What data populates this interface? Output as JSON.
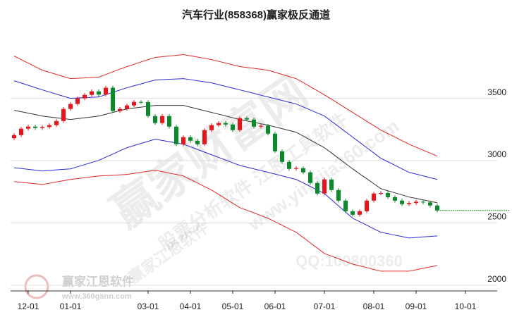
{
  "chart_data": {
    "type": "candlestick",
    "title": "汽车行业(858368)赢家极反通道",
    "categories": [
      null,
      null,
      "12-01",
      null,
      null,
      null,
      null,
      null,
      "01-01",
      null,
      null,
      null,
      null,
      null,
      null,
      null,
      null,
      null,
      null,
      "03-01",
      null,
      null,
      null,
      null,
      null,
      "04-01",
      null,
      null,
      null,
      null,
      null,
      "05-01",
      null,
      null,
      null,
      null,
      null,
      "06-01",
      null,
      null,
      null,
      null,
      null,
      null,
      "07-01",
      null,
      null,
      null,
      null,
      null,
      null,
      "08-01",
      null,
      null,
      null,
      null,
      null,
      "09-01",
      null,
      null,
      null,
      null,
      null,
      null,
      "10-01",
      null,
      null,
      null,
      null
    ],
    "open": [
      3180,
      3205,
      3256,
      3273,
      3262,
      3270,
      3285,
      3318,
      3415,
      3455,
      3500,
      3528,
      3556,
      3530,
      3585,
      3398,
      3415,
      3443,
      3471,
      3470,
      3358,
      3302,
      3358,
      3273,
      3132,
      3188,
      3160,
      3132,
      3245,
      3285,
      3302,
      3290,
      3245,
      3341,
      3330,
      3273,
      3280,
      3217,
      3075,
      2990,
      2934,
      2940,
      2906,
      2821,
      2736,
      2849,
      2764,
      2679,
      2594,
      2566,
      2594,
      2679,
      2736,
      2740,
      2707,
      2679,
      2651,
      2660,
      2670,
      2665,
      2640,
      null,
      null,
      null,
      null,
      null,
      null,
      null,
      null
    ],
    "high": [
      3220,
      3271,
      3288,
      3288,
      3285,
      3300,
      3333,
      3430,
      3470,
      3515,
      3543,
      3571,
      3571,
      3600,
      3600,
      3430,
      3458,
      3486,
      3486,
      3485,
      3373,
      3373,
      3373,
      3288,
      3203,
      3203,
      3175,
      3260,
      3300,
      3317,
      3317,
      3305,
      3356,
      3356,
      3345,
      3295,
      3295,
      3232,
      3090,
      3005,
      2955,
      2955,
      2921,
      2836,
      2864,
      2864,
      2779,
      2694,
      2609,
      2609,
      2694,
      2751,
      2755,
      2755,
      2722,
      2694,
      2675,
      2685,
      2685,
      2680,
      2655,
      null,
      null,
      null,
      null,
      null,
      null,
      null,
      null
    ],
    "low": [
      3165,
      3190,
      3241,
      3247,
      3247,
      3255,
      3270,
      3303,
      3400,
      3440,
      3485,
      3513,
      3515,
      3515,
      3383,
      3383,
      3400,
      3428,
      3455,
      3343,
      3287,
      3287,
      3258,
      3117,
      3117,
      3145,
      3117,
      3117,
      3230,
      3270,
      3275,
      3230,
      3230,
      3315,
      3258,
      3258,
      3202,
      3060,
      2975,
      2919,
      2919,
      2891,
      2806,
      2721,
      2721,
      2749,
      2664,
      2579,
      2551,
      2551,
      2579,
      2664,
      2721,
      2692,
      2664,
      2636,
      2636,
      2645,
      2650,
      2625,
      2585,
      null,
      null,
      null,
      null,
      null,
      null,
      null,
      null
    ],
    "close": [
      3205,
      3256,
      3273,
      3262,
      3270,
      3285,
      3318,
      3415,
      3455,
      3500,
      3528,
      3556,
      3530,
      3585,
      3398,
      3415,
      3443,
      3471,
      3470,
      3358,
      3302,
      3358,
      3273,
      3132,
      3188,
      3160,
      3132,
      3245,
      3285,
      3302,
      3290,
      3245,
      3341,
      3330,
      3273,
      3280,
      3217,
      3075,
      2990,
      2934,
      2940,
      2906,
      2821,
      2736,
      2849,
      2764,
      2679,
      2594,
      2566,
      2594,
      2679,
      2736,
      2740,
      2707,
      2679,
      2651,
      2660,
      2670,
      2665,
      2640,
      2600,
      null,
      null,
      null,
      null,
      null,
      null,
      null,
      null
    ],
    "up_color": "#e8141a",
    "down_color": "#0a8a2a",
    "last_color": "#2a9a2a",
    "lines": [
      {
        "color": "#e02828",
        "values": [
          3839,
          3811,
          3783,
          3754,
          3726,
          3709,
          3692,
          3675,
          3658,
          3661,
          3664,
          3667,
          3670,
          3691,
          3713,
          3734,
          3755,
          3773,
          3792,
          3810,
          3828,
          3834,
          3840,
          3845,
          3851,
          3841,
          3831,
          3821,
          3811,
          3797,
          3783,
          3769,
          3755,
          3748,
          3741,
          3733,
          3726,
          3709,
          3692,
          3675,
          3658,
          3626,
          3593,
          3561,
          3528,
          3493,
          3458,
          3422,
          3387,
          3352,
          3316,
          3281,
          3245,
          3217,
          3189,
          3160,
          3132,
          3108,
          3084,
          3060,
          3036,
          null,
          null,
          null,
          null,
          null,
          null,
          null,
          null
        ]
      },
      {
        "color": "#2a2ad8",
        "values": [
          3641,
          3623,
          3605,
          3586,
          3568,
          3551,
          3534,
          3517,
          3500,
          3503,
          3506,
          3508,
          3511,
          3530,
          3548,
          3567,
          3585,
          3601,
          3616,
          3632,
          3647,
          3650,
          3653,
          3655,
          3658,
          3650,
          3641,
          3633,
          3624,
          3610,
          3596,
          3582,
          3568,
          3554,
          3540,
          3525,
          3511,
          3497,
          3483,
          3469,
          3455,
          3431,
          3407,
          3382,
          3358,
          3316,
          3274,
          3231,
          3189,
          3147,
          3104,
          3062,
          3019,
          2991,
          2963,
          2934,
          2906,
          2892,
          2878,
          2863,
          2849,
          null,
          null,
          null,
          null,
          null,
          null,
          null,
          null
        ]
      },
      {
        "color": "#333333",
        "values": [
          3404,
          3393,
          3381,
          3370,
          3358,
          3351,
          3344,
          3337,
          3330,
          3337,
          3344,
          3351,
          3358,
          3372,
          3387,
          3401,
          3415,
          3422,
          3429,
          3436,
          3443,
          3443,
          3443,
          3443,
          3443,
          3429,
          3415,
          3401,
          3387,
          3373,
          3359,
          3344,
          3330,
          3319,
          3308,
          3296,
          3285,
          3271,
          3257,
          3242,
          3228,
          3197,
          3166,
          3135,
          3104,
          3062,
          3019,
          2977,
          2934,
          2894,
          2855,
          2815,
          2775,
          2758,
          2742,
          2725,
          2708,
          2697,
          2685,
          2674,
          2662,
          null,
          null,
          null,
          null,
          null,
          null,
          null,
          null
        ]
      },
      {
        "color": "#2a2ad8",
        "values": [
          2943,
          2937,
          2930,
          2924,
          2917,
          2921,
          2926,
          2930,
          2934,
          2951,
          2968,
          2985,
          3002,
          3028,
          3053,
          3079,
          3104,
          3121,
          3138,
          3155,
          3172,
          3162,
          3152,
          3142,
          3132,
          3111,
          3090,
          3068,
          3047,
          3026,
          3005,
          2983,
          2962,
          2948,
          2934,
          2920,
          2906,
          2892,
          2878,
          2863,
          2849,
          2821,
          2793,
          2764,
          2736,
          2687,
          2637,
          2588,
          2538,
          2510,
          2482,
          2453,
          2425,
          2414,
          2402,
          2391,
          2379,
          2383,
          2388,
          2392,
          2396,
          null,
          null,
          null,
          null,
          null,
          null,
          null,
          null
        ]
      },
      {
        "color": "#e02828",
        "values": [
          2832,
          2826,
          2821,
          2815,
          2809,
          2819,
          2829,
          2839,
          2849,
          2856,
          2863,
          2870,
          2877,
          2880,
          2883,
          2886,
          2889,
          2898,
          2906,
          2915,
          2923,
          2912,
          2900,
          2889,
          2877,
          2849,
          2821,
          2792,
          2764,
          2729,
          2694,
          2658,
          2623,
          2602,
          2581,
          2559,
          2538,
          2510,
          2482,
          2453,
          2425,
          2383,
          2340,
          2298,
          2255,
          2234,
          2213,
          2191,
          2170,
          2156,
          2142,
          2127,
          2113,
          2113,
          2113,
          2113,
          2113,
          2124,
          2136,
          2147,
          2158,
          null,
          null,
          null,
          null,
          null,
          null,
          null,
          null
        ]
      }
    ],
    "ylim": [
      1960,
      3950
    ],
    "yticks": [
      2000,
      2500,
      3000,
      3500
    ],
    "grid": true
  },
  "watermarks": [
    "赢家财富网",
    "股票分析软件 江恩工具软件",
    "www.yingjia360.com",
    "赢家江恩软件",
    "QQ:100800360",
    "赢家江恩软件",
    "www.360gann.com"
  ]
}
